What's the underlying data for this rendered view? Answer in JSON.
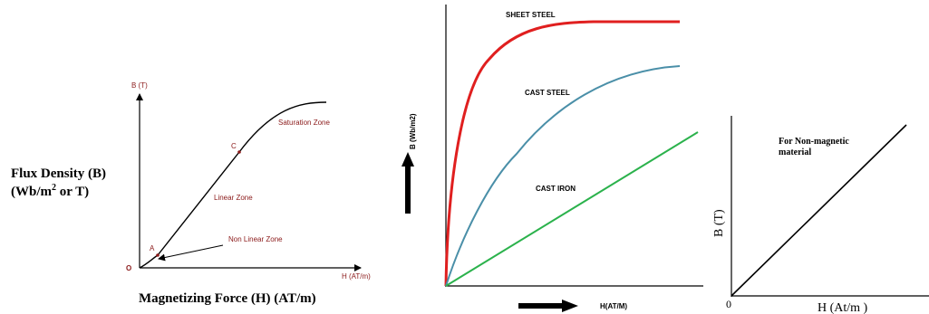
{
  "panel1": {
    "y_axis_short": "B (T)",
    "x_axis_short": "H (AT/m)",
    "origin": "O",
    "point_a": "A",
    "point_c": "C",
    "zone_saturation": "Saturation Zone",
    "zone_linear": "Linear Zone",
    "zone_nonlinear": "Non Linear Zone",
    "ylabel_line1": "Flux Density (B)",
    "ylabel_line2_pre": "(Wb/m",
    "ylabel_line2_sup": "2",
    "ylabel_line2_post": " or T)",
    "xlabel": "Magnetizing Force (H) (AT/m)"
  },
  "panel2": {
    "ylabel": "B (Wb/m2)",
    "xlabel": "H(AT/M)",
    "curve_sheet_steel": "SHEET STEEL",
    "curve_cast_steel": "CAST STEEL",
    "curve_cast_iron": "CAST IRON",
    "colors": {
      "sheet_steel": "#e01f1f",
      "cast_steel": "#4a8fa8",
      "cast_iron": "#2bb24c"
    }
  },
  "panel3": {
    "ylabel": "B (T)",
    "xlabel": "H (At/m )",
    "origin": "0",
    "annotation_line1": "For Non-magnetic",
    "annotation_line2": "material"
  }
}
